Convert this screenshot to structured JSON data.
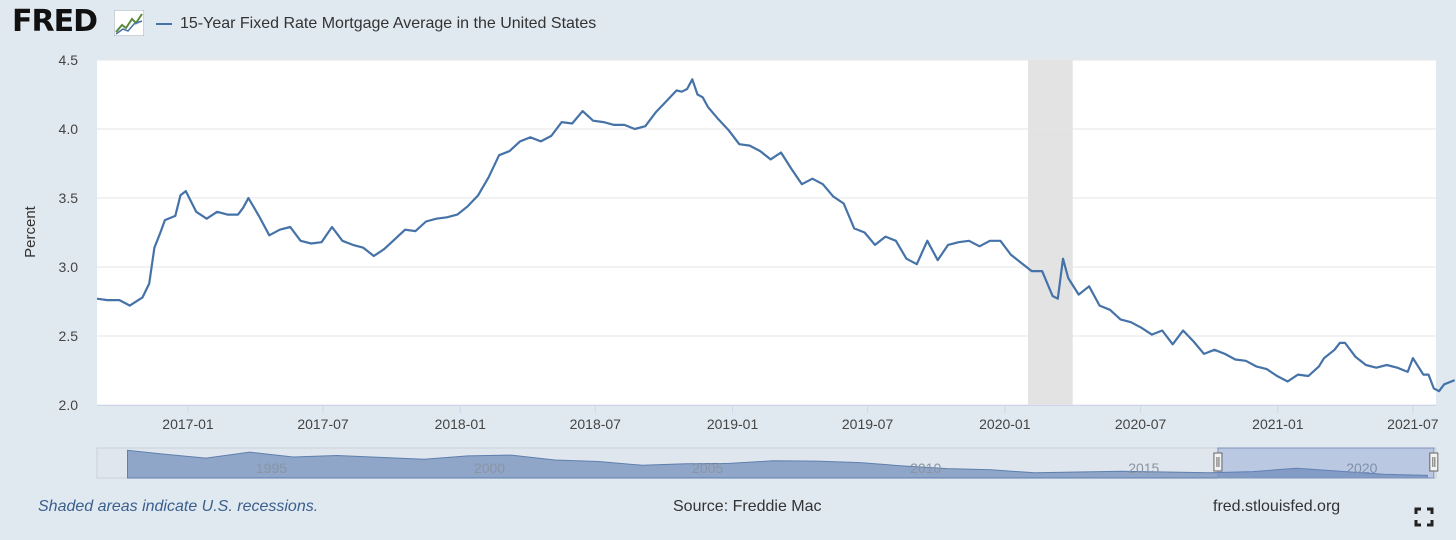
{
  "header": {
    "logo_text": "FRED",
    "series_title": "15-Year Fixed Rate Mortgage Average in the United States"
  },
  "footer": {
    "recession_note": "Shaded areas indicate U.S. recessions.",
    "source": "Source: Freddie Mac",
    "site": "fred.stlouisfed.org"
  },
  "colors": {
    "line": "#4572a7",
    "recession": "#e3e3e3",
    "background": "#e1e9f0",
    "navigator_fill": "#8fa6c8"
  },
  "icons": [
    "fred-logo-graph-icon",
    "fullscreen-icon",
    "navigator-handle-icon"
  ],
  "chart_data": {
    "type": "line",
    "title": "",
    "xlabel": "",
    "ylabel": "Percent",
    "ylim": [
      2.0,
      4.5
    ],
    "yticks": [
      "2.0",
      "2.5",
      "3.0",
      "3.5",
      "4.0",
      "4.5"
    ],
    "xticks": [
      "2017-01",
      "2017-07",
      "2018-01",
      "2018-07",
      "2019-01",
      "2019-07",
      "2020-01",
      "2020-07",
      "2021-01",
      "2021-07"
    ],
    "xrange": [
      "2016-09",
      "2021-08"
    ],
    "grid": true,
    "recessions": [
      {
        "start": "2020-02",
        "end": "2020-04"
      }
    ],
    "series": [
      {
        "name": "15-Year Fixed Rate Mortgage Average in the United States",
        "points": [
          [
            "2016-09-01",
            2.77
          ],
          [
            "2016-09-15",
            2.76
          ],
          [
            "2016-10-01",
            2.76
          ],
          [
            "2016-10-15",
            2.72
          ],
          [
            "2016-11-01",
            2.78
          ],
          [
            "2016-11-10",
            2.88
          ],
          [
            "2016-11-17",
            3.14
          ],
          [
            "2016-11-25",
            3.25
          ],
          [
            "2016-12-01",
            3.34
          ],
          [
            "2016-12-15",
            3.37
          ],
          [
            "2016-12-22",
            3.52
          ],
          [
            "2016-12-29",
            3.55
          ],
          [
            "2017-01-12",
            3.4
          ],
          [
            "2017-01-26",
            3.35
          ],
          [
            "2017-02-09",
            3.4
          ],
          [
            "2017-02-23",
            3.38
          ],
          [
            "2017-03-09",
            3.38
          ],
          [
            "2017-03-16",
            3.43
          ],
          [
            "2017-03-23",
            3.5
          ],
          [
            "2017-04-06",
            3.37
          ],
          [
            "2017-04-20",
            3.23
          ],
          [
            "2017-05-04",
            3.27
          ],
          [
            "2017-05-18",
            3.29
          ],
          [
            "2017-06-01",
            3.19
          ],
          [
            "2017-06-15",
            3.17
          ],
          [
            "2017-06-29",
            3.18
          ],
          [
            "2017-07-13",
            3.29
          ],
          [
            "2017-07-27",
            3.19
          ],
          [
            "2017-08-10",
            3.16
          ],
          [
            "2017-08-24",
            3.14
          ],
          [
            "2017-09-07",
            3.08
          ],
          [
            "2017-09-21",
            3.13
          ],
          [
            "2017-10-05",
            3.2
          ],
          [
            "2017-10-19",
            3.27
          ],
          [
            "2017-11-02",
            3.26
          ],
          [
            "2017-11-16",
            3.33
          ],
          [
            "2017-11-30",
            3.35
          ],
          [
            "2017-12-14",
            3.36
          ],
          [
            "2017-12-28",
            3.38
          ],
          [
            "2018-01-11",
            3.44
          ],
          [
            "2018-01-25",
            3.52
          ],
          [
            "2018-02-08",
            3.65
          ],
          [
            "2018-02-22",
            3.81
          ],
          [
            "2018-03-08",
            3.84
          ],
          [
            "2018-03-22",
            3.91
          ],
          [
            "2018-04-05",
            3.94
          ],
          [
            "2018-04-19",
            3.91
          ],
          [
            "2018-05-03",
            3.95
          ],
          [
            "2018-05-17",
            4.05
          ],
          [
            "2018-05-31",
            4.04
          ],
          [
            "2018-06-14",
            4.13
          ],
          [
            "2018-06-28",
            4.06
          ],
          [
            "2018-07-12",
            4.05
          ],
          [
            "2018-07-26",
            4.03
          ],
          [
            "2018-08-09",
            4.03
          ],
          [
            "2018-08-23",
            4.0
          ],
          [
            "2018-09-06",
            4.02
          ],
          [
            "2018-09-20",
            4.12
          ],
          [
            "2018-10-04",
            4.2
          ],
          [
            "2018-10-18",
            4.28
          ],
          [
            "2018-10-25",
            4.27
          ],
          [
            "2018-11-01",
            4.29
          ],
          [
            "2018-11-08",
            4.36
          ],
          [
            "2018-11-15",
            4.25
          ],
          [
            "2018-11-22",
            4.23
          ],
          [
            "2018-11-29",
            4.16
          ],
          [
            "2018-12-13",
            4.07
          ],
          [
            "2018-12-27",
            3.99
          ],
          [
            "2019-01-10",
            3.89
          ],
          [
            "2019-01-24",
            3.88
          ],
          [
            "2019-02-07",
            3.84
          ],
          [
            "2019-02-21",
            3.78
          ],
          [
            "2019-03-07",
            3.83
          ],
          [
            "2019-03-21",
            3.71
          ],
          [
            "2019-04-04",
            3.6
          ],
          [
            "2019-04-18",
            3.64
          ],
          [
            "2019-05-02",
            3.6
          ],
          [
            "2019-05-16",
            3.51
          ],
          [
            "2019-05-30",
            3.46
          ],
          [
            "2019-06-13",
            3.28
          ],
          [
            "2019-06-27",
            3.25
          ],
          [
            "2019-07-11",
            3.16
          ],
          [
            "2019-07-25",
            3.22
          ],
          [
            "2019-08-08",
            3.19
          ],
          [
            "2019-08-22",
            3.06
          ],
          [
            "2019-09-05",
            3.02
          ],
          [
            "2019-09-19",
            3.19
          ],
          [
            "2019-10-03",
            3.05
          ],
          [
            "2019-10-17",
            3.16
          ],
          [
            "2019-10-31",
            3.18
          ],
          [
            "2019-11-14",
            3.19
          ],
          [
            "2019-11-28",
            3.15
          ],
          [
            "2019-12-12",
            3.19
          ],
          [
            "2019-12-26",
            3.19
          ],
          [
            "2020-01-09",
            3.09
          ],
          [
            "2020-01-23",
            3.03
          ],
          [
            "2020-02-06",
            2.97
          ],
          [
            "2020-02-20",
            2.97
          ],
          [
            "2020-03-05",
            2.79
          ],
          [
            "2020-03-12",
            2.77
          ],
          [
            "2020-03-19",
            3.06
          ],
          [
            "2020-03-26",
            2.92
          ],
          [
            "2020-04-09",
            2.8
          ],
          [
            "2020-04-23",
            2.86
          ],
          [
            "2020-05-07",
            2.72
          ],
          [
            "2020-05-21",
            2.69
          ],
          [
            "2020-06-04",
            2.62
          ],
          [
            "2020-06-18",
            2.6
          ],
          [
            "2020-07-02",
            2.56
          ],
          [
            "2020-07-16",
            2.51
          ],
          [
            "2020-07-30",
            2.54
          ],
          [
            "2020-08-13",
            2.44
          ],
          [
            "2020-08-27",
            2.54
          ],
          [
            "2020-09-10",
            2.46
          ],
          [
            "2020-09-24",
            2.37
          ],
          [
            "2020-10-08",
            2.4
          ],
          [
            "2020-10-22",
            2.37
          ],
          [
            "2020-11-05",
            2.33
          ],
          [
            "2020-11-19",
            2.32
          ],
          [
            "2020-12-03",
            2.28
          ],
          [
            "2020-12-17",
            2.26
          ],
          [
            "2020-12-31",
            2.21
          ],
          [
            "2021-01-14",
            2.17
          ],
          [
            "2021-01-28",
            2.22
          ],
          [
            "2021-02-11",
            2.21
          ],
          [
            "2021-02-25",
            2.28
          ],
          [
            "2021-03-04",
            2.34
          ],
          [
            "2021-03-18",
            2.4
          ],
          [
            "2021-03-25",
            2.45
          ],
          [
            "2021-04-01",
            2.45
          ],
          [
            "2021-04-15",
            2.35
          ],
          [
            "2021-04-29",
            2.29
          ],
          [
            "2021-05-13",
            2.27
          ],
          [
            "2021-05-27",
            2.29
          ],
          [
            "2021-06-10",
            2.27
          ],
          [
            "2021-06-24",
            2.24
          ],
          [
            "2021-07-01",
            2.34
          ],
          [
            "2021-07-15",
            2.22
          ],
          [
            "2021-07-22",
            2.22
          ],
          [
            "2021-07-29",
            2.12
          ],
          [
            "2021-08-05",
            2.1
          ],
          [
            "2021-08-12",
            2.15
          ],
          [
            "2021-08-26",
            2.18
          ]
        ]
      }
    ],
    "navigator": {
      "tick_labels": [
        "1995",
        "2000",
        "2005",
        "2010",
        "2015",
        "2020"
      ],
      "tick_years": [
        1995,
        2000,
        2005,
        2010,
        2015,
        2020
      ],
      "range_years": [
        1991,
        2021.7
      ],
      "selected_years": [
        2016.7,
        2021.65
      ],
      "overview": [
        [
          1991.7,
          8.9
        ],
        [
          1992.5,
          7.9
        ],
        [
          1993.5,
          6.8
        ],
        [
          1994.5,
          8.4
        ],
        [
          1995.5,
          7.1
        ],
        [
          1996.5,
          7.5
        ],
        [
          1997.5,
          7.0
        ],
        [
          1998.5,
          6.5
        ],
        [
          1999.5,
          7.4
        ],
        [
          2000.5,
          7.6
        ],
        [
          2001.5,
          6.3
        ],
        [
          2002.5,
          5.9
        ],
        [
          2003.5,
          4.9
        ],
        [
          2004.5,
          5.3
        ],
        [
          2005.5,
          5.4
        ],
        [
          2006.5,
          6.1
        ],
        [
          2007.5,
          6.0
        ],
        [
          2008.5,
          5.6
        ],
        [
          2009.5,
          4.7
        ],
        [
          2010.5,
          4.0
        ],
        [
          2011.5,
          3.7
        ],
        [
          2012.5,
          2.9
        ],
        [
          2013.5,
          3.1
        ],
        [
          2014.5,
          3.3
        ],
        [
          2015.5,
          3.1
        ],
        [
          2016.5,
          2.9
        ],
        [
          2017.5,
          3.2
        ],
        [
          2018.5,
          4.1
        ],
        [
          2019.5,
          3.3
        ],
        [
          2020.5,
          2.5
        ],
        [
          2021.5,
          2.2
        ]
      ]
    }
  }
}
